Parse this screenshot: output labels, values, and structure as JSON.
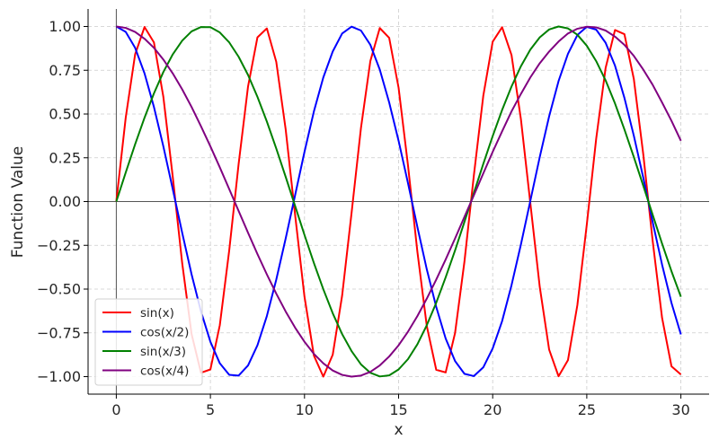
{
  "chart_data": {
    "type": "line",
    "title": "",
    "xlabel": "x",
    "ylabel": "Function Value",
    "xlim": [
      -1.5,
      31.5
    ],
    "ylim": [
      -1.1,
      1.1
    ],
    "xticks": [
      0,
      5,
      10,
      15,
      20,
      25,
      30
    ],
    "xtick_labels": [
      "0",
      "5",
      "10",
      "15",
      "20",
      "25",
      "30"
    ],
    "yticks": [
      -1.0,
      -0.75,
      -0.5,
      -0.25,
      0.0,
      0.25,
      0.5,
      0.75,
      1.0
    ],
    "ytick_labels": [
      "−1.00",
      "−0.75",
      "−0.50",
      "−0.25",
      "0.00",
      "0.25",
      "0.50",
      "0.75",
      "1.00"
    ],
    "grid": true,
    "legend_position": "lower-left",
    "x": [
      0,
      0.5,
      1,
      1.5,
      2,
      2.5,
      3,
      3.5,
      4,
      4.5,
      5,
      5.5,
      6,
      6.5,
      7,
      7.5,
      8,
      8.5,
      9,
      9.5,
      10,
      10.5,
      11,
      11.5,
      12,
      12.5,
      13,
      13.5,
      14,
      14.5,
      15,
      15.5,
      16,
      16.5,
      17,
      17.5,
      18,
      18.5,
      19,
      19.5,
      20,
      20.5,
      21,
      21.5,
      22,
      22.5,
      23,
      23.5,
      24,
      24.5,
      25,
      25.5,
      26,
      26.5,
      27,
      27.5,
      28,
      28.5,
      29,
      29.5,
      30
    ],
    "series": [
      {
        "name": "sin(x)",
        "color": "#ff0000",
        "values": [
          0.0,
          0.479,
          0.841,
          0.997,
          0.909,
          0.598,
          0.141,
          -0.351,
          -0.757,
          -0.978,
          -0.959,
          -0.706,
          -0.279,
          0.215,
          0.657,
          0.938,
          0.989,
          0.798,
          0.412,
          -0.075,
          -0.544,
          -0.88,
          -1.0,
          -0.875,
          -0.537,
          -0.066,
          0.42,
          0.803,
          0.991,
          0.935,
          0.65,
          0.206,
          -0.288,
          -0.712,
          -0.961,
          -0.976,
          -0.751,
          -0.342,
          0.15,
          0.604,
          0.913,
          0.996,
          0.837,
          0.47,
          -0.009,
          -0.487,
          -0.846,
          -0.998,
          -0.906,
          -0.591,
          -0.132,
          0.359,
          0.763,
          0.98,
          0.956,
          0.7,
          0.271,
          -0.224,
          -0.664,
          -0.941,
          -0.988
        ]
      },
      {
        "name": "cos(x/2)",
        "color": "#0000ff",
        "values": [
          1.0,
          0.969,
          0.878,
          0.732,
          0.54,
          0.315,
          0.071,
          -0.178,
          -0.416,
          -0.628,
          -0.801,
          -0.924,
          -0.99,
          -0.994,
          -0.936,
          -0.821,
          -0.654,
          -0.446,
          -0.211,
          0.036,
          0.284,
          0.515,
          0.709,
          0.857,
          0.96,
          0.999,
          0.977,
          0.895,
          0.754,
          0.566,
          0.347,
          0.105,
          -0.146,
          -0.388,
          -0.602,
          -0.782,
          -0.911,
          -0.984,
          -0.997,
          -0.947,
          -0.839,
          -0.683,
          -0.478,
          -0.245,
          0.004,
          0.254,
          0.487,
          0.688,
          0.844,
          0.951,
          0.998,
          0.982,
          0.907,
          0.776,
          0.592,
          0.376,
          0.137,
          -0.117,
          -0.36,
          -0.579,
          -0.759
        ]
      },
      {
        "name": "sin(x/3)",
        "color": "#008000",
        "values": [
          0.0,
          0.166,
          0.327,
          0.479,
          0.618,
          0.74,
          0.841,
          0.919,
          0.972,
          0.997,
          0.996,
          0.966,
          0.909,
          0.827,
          0.723,
          0.598,
          0.457,
          0.303,
          0.141,
          -0.025,
          -0.191,
          -0.351,
          -0.501,
          -0.638,
          -0.757,
          -0.854,
          -0.93,
          -0.978,
          -0.999,
          -0.993,
          -0.959,
          -0.9,
          -0.815,
          -0.706,
          -0.578,
          -0.433,
          -0.279,
          -0.116,
          0.05,
          0.215,
          0.374,
          0.523,
          0.657,
          0.773,
          0.868,
          0.938,
          0.983,
          1.0,
          0.989,
          0.953,
          0.89,
          0.802,
          0.692,
          0.56,
          0.412,
          0.254,
          0.091,
          -0.075,
          -0.24,
          -0.398,
          -0.544
        ]
      },
      {
        "name": "cos(x/4)",
        "color": "#800080",
        "values": [
          1.0,
          0.992,
          0.969,
          0.93,
          0.878,
          0.811,
          0.732,
          0.641,
          0.54,
          0.43,
          0.315,
          0.195,
          0.071,
          -0.054,
          -0.178,
          -0.3,
          -0.416,
          -0.526,
          -0.628,
          -0.72,
          -0.801,
          -0.87,
          -0.924,
          -0.965,
          -0.99,
          -1.0,
          -0.994,
          -0.973,
          -0.936,
          -0.885,
          -0.821,
          -0.743,
          -0.654,
          -0.554,
          -0.446,
          -0.331,
          -0.211,
          -0.087,
          0.036,
          0.161,
          0.284,
          0.401,
          0.515,
          0.615,
          0.709,
          0.79,
          0.857,
          0.914,
          0.96,
          0.987,
          0.999,
          0.995,
          0.977,
          0.942,
          0.895,
          0.832,
          0.754,
          0.667,
          0.566,
          0.461,
          0.347
        ]
      }
    ]
  }
}
